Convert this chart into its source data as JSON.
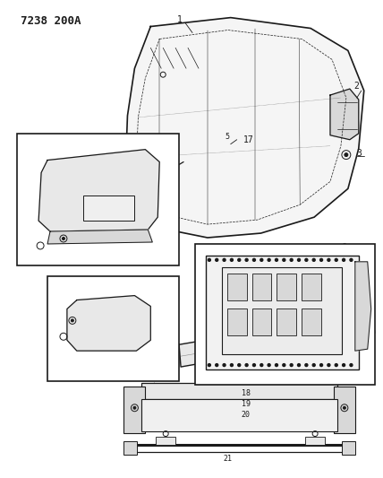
{
  "title": "7238 200A",
  "bg_color": "#ffffff",
  "fig_width": 4.28,
  "fig_height": 5.33,
  "dpi": 100,
  "line_color": "#1a1a1a",
  "fill_light": "#e8e8e8",
  "fill_medium": "#d8d8d8",
  "fill_dark": "#c8c8c8"
}
